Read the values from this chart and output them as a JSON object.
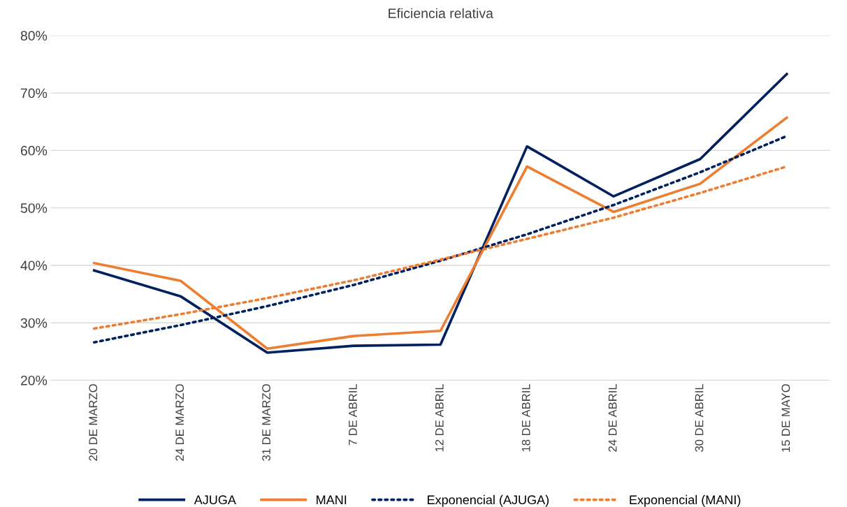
{
  "chart_data": {
    "type": "line",
    "title": "Eficiencia relativa",
    "categories": [
      "20 DE MARZO",
      "24 DE MARZO",
      "31 DE MARZO",
      "7 DE ABRIL",
      "12 DE ABRIL",
      "18 DE ABRIL",
      "24 DE ABRIL",
      "30 DE ABRIL",
      "15 DE MAYO"
    ],
    "series": [
      {
        "name": "AJUGA",
        "color": "#002060",
        "line_style": "solid",
        "values": [
          39.1,
          34.6,
          24.8,
          26.0,
          26.2,
          60.7,
          52.0,
          58.5,
          73.3
        ]
      },
      {
        "name": "MANI",
        "color": "#ed7d31",
        "line_style": "solid",
        "values": [
          40.4,
          37.3,
          25.5,
          27.7,
          28.6,
          57.2,
          49.3,
          54.2,
          65.7
        ]
      },
      {
        "name": "Exponencial (AJUGA)",
        "color": "#002060",
        "line_style": "dotted",
        "values": [
          26.6,
          29.6,
          32.9,
          36.6,
          40.8,
          45.4,
          50.5,
          56.2,
          62.5
        ]
      },
      {
        "name": "Exponencial (MANI)",
        "color": "#ed7d31",
        "line_style": "dotted",
        "values": [
          29.0,
          31.5,
          34.3,
          37.4,
          41.0,
          44.6,
          48.3,
          52.6,
          57.2
        ]
      }
    ],
    "ylim": [
      20,
      80
    ],
    "yticks": [
      {
        "value": 20,
        "label": "20%"
      },
      {
        "value": 30,
        "label": "30%"
      },
      {
        "value": 40,
        "label": "40%"
      },
      {
        "value": 50,
        "label": "50%"
      },
      {
        "value": 60,
        "label": "60%"
      },
      {
        "value": 70,
        "label": "70%"
      },
      {
        "value": 80,
        "label": "80%"
      }
    ],
    "grid": "y",
    "legend": "bottom",
    "marker": "none"
  }
}
